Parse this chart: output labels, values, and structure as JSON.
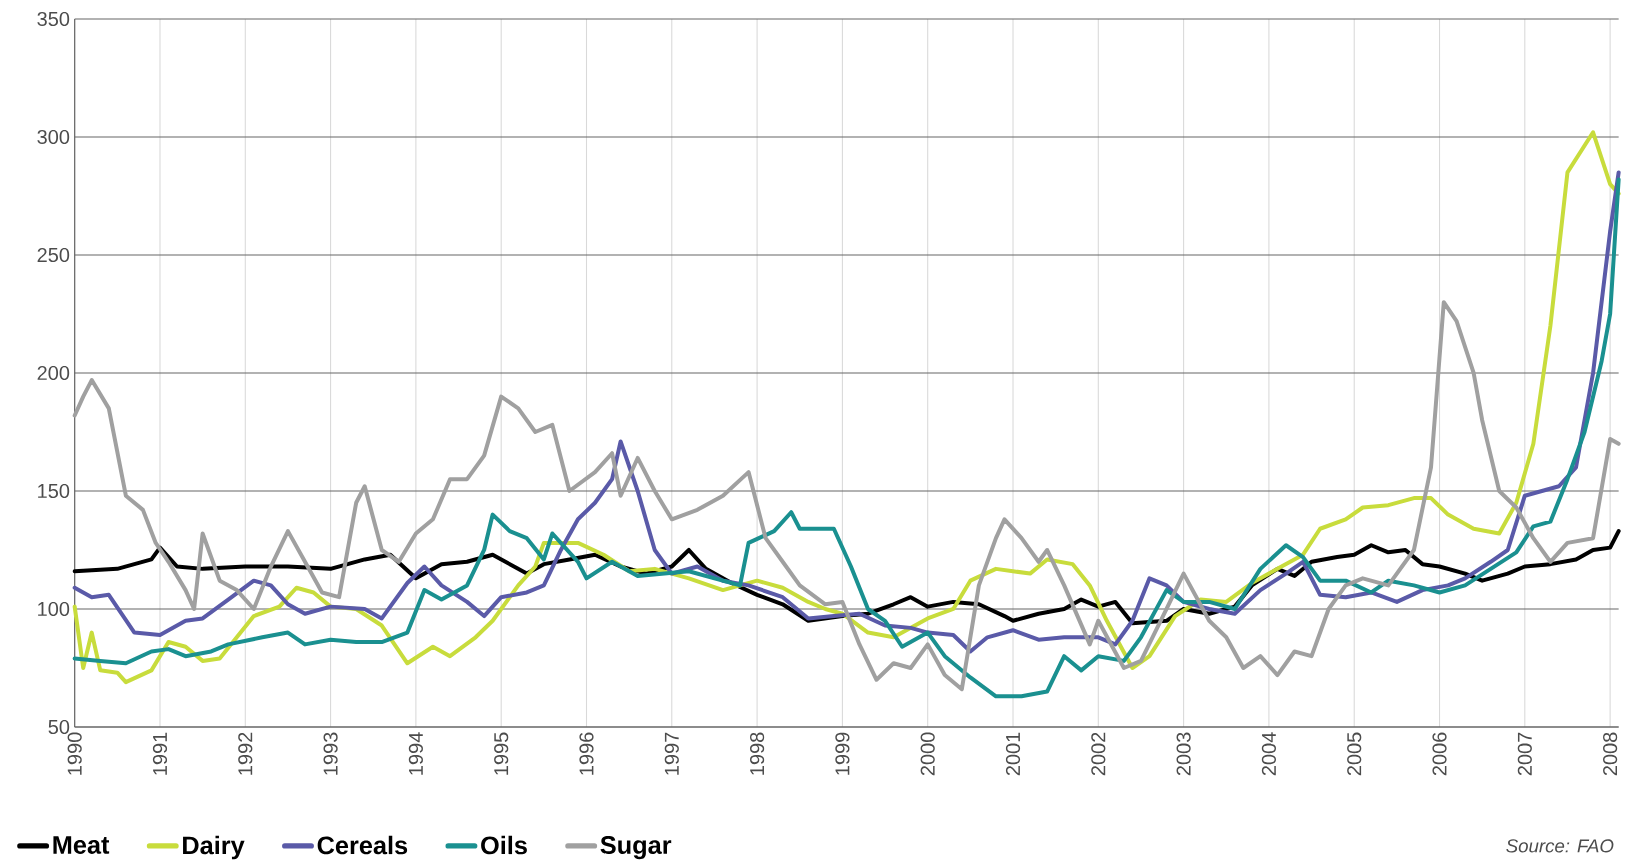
{
  "chart_data": {
    "type": "line",
    "xlim": [
      1990,
      2008.1
    ],
    "ylim": [
      50,
      350
    ],
    "xticks": [
      1990,
      1991,
      1992,
      1993,
      1994,
      1995,
      1996,
      1997,
      1998,
      1999,
      2000,
      2001,
      2002,
      2003,
      2004,
      2005,
      2006,
      2007,
      2008
    ],
    "yticks": [
      50,
      100,
      150,
      200,
      250,
      300,
      350
    ],
    "grid": true,
    "legend": "bottom left",
    "marker": "none",
    "line_style": "solid",
    "annotations": [
      "Source: FAO"
    ],
    "series": [
      {
        "name": "Meat",
        "color": "#000000",
        "x": [
          1990,
          1990.5,
          1990.9,
          1991,
          1991.2,
          1991.5,
          1992,
          1992.5,
          1993,
          1993.4,
          1993.7,
          1994,
          1994.3,
          1994.6,
          1994.9,
          1995.3,
          1995.5,
          1995.8,
          1996.1,
          1996.4,
          1996.7,
          1997,
          1997.2,
          1997.4,
          1997.7,
          1998,
          1998.3,
          1998.6,
          1999,
          1999.3,
          1999.6,
          1999.8,
          2000,
          2000.3,
          2000.6,
          2000.9,
          2001,
          2001.3,
          2001.6,
          2001.8,
          2002,
          2002.2,
          2002.4,
          2002.8,
          2003,
          2003.3,
          2003.6,
          2003.8,
          2004.1,
          2004.3,
          2004.5,
          2004.8,
          2005,
          2005.2,
          2005.4,
          2005.6,
          2005.8,
          2006,
          2006.3,
          2006.5,
          2006.8,
          2007,
          2007.3,
          2007.6,
          2007.8,
          2008,
          2008.1
        ],
        "values": [
          116,
          117,
          121,
          126,
          118,
          117,
          118,
          118,
          117,
          121,
          123,
          113,
          119,
          120,
          123,
          115,
          119,
          121,
          123,
          118,
          115,
          118,
          125,
          117,
          111,
          106,
          102,
          95,
          97,
          98,
          102,
          105,
          101,
          103,
          102,
          97,
          95,
          98,
          100,
          104,
          101,
          103,
          94,
          95,
          100,
          98,
          101,
          110,
          117,
          114,
          120,
          122,
          123,
          127,
          124,
          125,
          119,
          118,
          115,
          112,
          115,
          118,
          119,
          121,
          125,
          126,
          133
        ]
      },
      {
        "name": "Dairy",
        "color": "#c8dc3c",
        "x": [
          1990,
          1990.1,
          1990.2,
          1990.3,
          1990.5,
          1990.6,
          1990.9,
          1991.1,
          1991.3,
          1991.5,
          1991.7,
          1991.9,
          1992.1,
          1992.4,
          1992.6,
          1992.8,
          1993,
          1993.3,
          1993.6,
          1993.9,
          1994.2,
          1994.4,
          1994.7,
          1994.9,
          1995.2,
          1995.4,
          1995.5,
          1995.9,
          1996.2,
          1996.5,
          1996.8,
          1997.2,
          1997.6,
          1998,
          1998.3,
          1998.6,
          1998.8,
          1999,
          1999.3,
          1999.6,
          2000,
          2000.3,
          2000.5,
          2000.8,
          2001,
          2001.2,
          2001.4,
          2001.7,
          2001.9,
          2002.1,
          2002.4,
          2002.6,
          2002.9,
          2003.2,
          2003.5,
          2003.8,
          2004.1,
          2004.4,
          2004.6,
          2004.9,
          2005.1,
          2005.4,
          2005.7,
          2005.9,
          2006.1,
          2006.4,
          2006.7,
          2006.9,
          2007.1,
          2007.3,
          2007.5,
          2007.8,
          2008,
          2008.1
        ],
        "values": [
          101,
          75,
          90,
          74,
          73,
          69,
          74,
          86,
          84,
          78,
          79,
          88,
          97,
          101,
          109,
          107,
          101,
          100,
          93,
          77,
          84,
          80,
          88,
          95,
          110,
          118,
          128,
          128,
          123,
          116,
          117,
          113,
          108,
          112,
          109,
          103,
          100,
          98,
          90,
          88,
          96,
          100,
          112,
          117,
          116,
          115,
          121,
          119,
          110,
          95,
          75,
          80,
          97,
          104,
          103,
          111,
          117,
          123,
          134,
          138,
          143,
          144,
          147,
          147,
          140,
          134,
          132,
          145,
          170,
          220,
          285,
          302,
          280,
          276
        ]
      },
      {
        "name": "Cereals",
        "color": "#5a5aa8",
        "x": [
          1990,
          1990.2,
          1990.4,
          1990.7,
          1991,
          1991.3,
          1991.5,
          1991.8,
          1992.1,
          1992.3,
          1992.5,
          1992.7,
          1993,
          1993.4,
          1993.6,
          1993.9,
          1994.1,
          1994.3,
          1994.6,
          1994.8,
          1995,
          1995.3,
          1995.5,
          1995.7,
          1995.9,
          1996.1,
          1996.3,
          1996.4,
          1996.6,
          1996.8,
          1997,
          1997.3,
          1997.6,
          1997.9,
          1998.3,
          1998.6,
          1998.9,
          1999.2,
          1999.5,
          1999.8,
          2000,
          2000.3,
          2000.5,
          2000.7,
          2001,
          2001.3,
          2001.6,
          2002,
          2002.2,
          2002.4,
          2002.6,
          2002.8,
          2003,
          2003.3,
          2003.6,
          2003.9,
          2004.2,
          2004.4,
          2004.6,
          2004.9,
          2005.2,
          2005.5,
          2005.8,
          2006.1,
          2006.3,
          2006.6,
          2006.8,
          2007,
          2007.2,
          2007.4,
          2007.6,
          2007.8,
          2008,
          2008.1
        ],
        "values": [
          109,
          105,
          106,
          90,
          89,
          95,
          96,
          104,
          112,
          110,
          102,
          98,
          101,
          100,
          96,
          111,
          118,
          110,
          103,
          97,
          105,
          107,
          110,
          125,
          138,
          145,
          155,
          171,
          150,
          125,
          115,
          118,
          112,
          110,
          105,
          96,
          97,
          98,
          93,
          92,
          90,
          89,
          82,
          88,
          91,
          87,
          88,
          88,
          85,
          95,
          113,
          110,
          103,
          100,
          98,
          108,
          115,
          120,
          106,
          105,
          107,
          103,
          108,
          110,
          113,
          120,
          125,
          148,
          150,
          152,
          160,
          200,
          260,
          285
        ]
      },
      {
        "name": "Oils",
        "color": "#1a9090",
        "x": [
          1990,
          1990.3,
          1990.6,
          1990.9,
          1991.1,
          1991.3,
          1991.6,
          1991.8,
          1992.2,
          1992.5,
          1992.7,
          1993,
          1993.3,
          1993.6,
          1993.9,
          1994.1,
          1994.3,
          1994.6,
          1994.8,
          1994.9,
          1995.1,
          1995.3,
          1995.5,
          1995.6,
          1995.9,
          1996,
          1996.3,
          1996.6,
          1996.9,
          1997.2,
          1997.5,
          1997.8,
          1997.9,
          1998.2,
          1998.4,
          1998.5,
          1998.9,
          1999.1,
          1999.3,
          1999.5,
          1999.7,
          2000,
          2000.2,
          2000.5,
          2000.8,
          2001.1,
          2001.4,
          2001.6,
          2001.8,
          2002,
          2002.3,
          2002.5,
          2002.8,
          2003,
          2003.3,
          2003.6,
          2003.9,
          2004.2,
          2004.4,
          2004.6,
          2004.9,
          2005.2,
          2005.4,
          2005.7,
          2006,
          2006.3,
          2006.6,
          2006.9,
          2007.1,
          2007.3,
          2007.5,
          2007.7,
          2007.9,
          2008,
          2008.1
        ],
        "values": [
          79,
          78,
          77,
          82,
          83,
          80,
          82,
          85,
          88,
          90,
          85,
          87,
          86,
          86,
          90,
          108,
          104,
          110,
          125,
          140,
          133,
          130,
          121,
          132,
          120,
          113,
          120,
          114,
          115,
          116,
          113,
          110,
          128,
          133,
          141,
          134,
          134,
          118,
          100,
          95,
          84,
          90,
          80,
          71,
          63,
          63,
          65,
          80,
          74,
          80,
          78,
          88,
          108,
          103,
          103,
          100,
          117,
          127,
          122,
          112,
          112,
          107,
          112,
          110,
          107,
          110,
          117,
          124,
          135,
          137,
          155,
          175,
          205,
          225,
          282
        ]
      },
      {
        "name": "Sugar",
        "color": "#a0a0a0",
        "x": [
          1990,
          1990.1,
          1990.2,
          1990.4,
          1990.6,
          1990.8,
          1990.95,
          1991.1,
          1991.3,
          1991.4,
          1991.5,
          1991.7,
          1991.9,
          1992.1,
          1992.3,
          1992.5,
          1992.7,
          1992.9,
          1993.1,
          1993.3,
          1993.4,
          1993.6,
          1993.8,
          1994,
          1994.2,
          1994.4,
          1994.6,
          1994.8,
          1995,
          1995.2,
          1995.4,
          1995.6,
          1995.8,
          1996.1,
          1996.3,
          1996.4,
          1996.6,
          1996.8,
          1997,
          1997.3,
          1997.6,
          1997.9,
          1998.1,
          1998.3,
          1998.5,
          1998.8,
          1999,
          1999.2,
          1999.4,
          1999.6,
          1999.8,
          2000,
          2000.2,
          2000.4,
          2000.6,
          2000.8,
          2000.9,
          2001.1,
          2001.3,
          2001.4,
          2001.6,
          2001.9,
          2002,
          2002.3,
          2002.5,
          2002.8,
          2003,
          2003.3,
          2003.5,
          2003.7,
          2003.9,
          2004.1,
          2004.3,
          2004.5,
          2004.7,
          2004.9,
          2005.1,
          2005.4,
          2005.7,
          2005.9,
          2006.05,
          2006.2,
          2006.4,
          2006.5,
          2006.7,
          2006.9,
          2007.1,
          2007.3,
          2007.5,
          2007.8,
          2008,
          2008.1
        ],
        "values": [
          182,
          190,
          197,
          185,
          148,
          142,
          128,
          120,
          108,
          100,
          132,
          112,
          108,
          100,
          118,
          133,
          120,
          107,
          105,
          145,
          152,
          125,
          120,
          132,
          138,
          155,
          155,
          165,
          190,
          185,
          175,
          178,
          150,
          158,
          166,
          148,
          164,
          150,
          138,
          142,
          148,
          158,
          130,
          120,
          110,
          102,
          103,
          85,
          70,
          77,
          75,
          85,
          72,
          66,
          110,
          130,
          138,
          130,
          120,
          125,
          110,
          85,
          95,
          75,
          78,
          100,
          115,
          95,
          88,
          75,
          80,
          72,
          82,
          80,
          100,
          110,
          113,
          110,
          125,
          160,
          230,
          222,
          200,
          180,
          150,
          143,
          130,
          120,
          128,
          130,
          172,
          170
        ]
      }
    ]
  }
}
